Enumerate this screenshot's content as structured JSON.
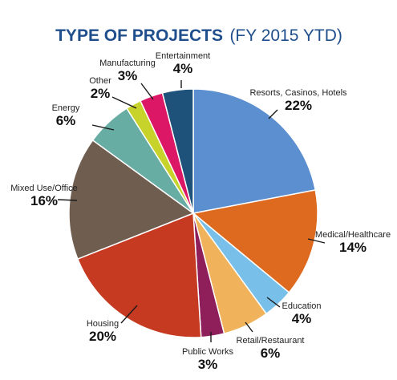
{
  "chart_data": {
    "type": "pie",
    "title": "TYPE OF PROJECTS",
    "subtitle": "(FY 2015 YTD)",
    "slices": [
      {
        "label": "Resorts, Casinos, Hotels",
        "value": 22,
        "value_text": "22%",
        "color": "#5b8fcf"
      },
      {
        "label": "Medical/Healthcare",
        "value": 14,
        "value_text": "14%",
        "color": "#dd6a1f"
      },
      {
        "label": "Education",
        "value": 4,
        "value_text": "4%",
        "color": "#78c0ea"
      },
      {
        "label": "Retail/Restaurant",
        "value": 6,
        "value_text": "6%",
        "color": "#f0b25a"
      },
      {
        "label": "Public Works",
        "value": 3,
        "value_text": "3%",
        "color": "#8e1f5a"
      },
      {
        "label": "Housing",
        "value": 20,
        "value_text": "20%",
        "color": "#c63a22"
      },
      {
        "label": "Mixed Use/Office",
        "value": 16,
        "value_text": "16%",
        "color": "#6f5d4f"
      },
      {
        "label": "Energy",
        "value": 6,
        "value_text": "6%",
        "color": "#67ada3"
      },
      {
        "label": "Other",
        "value": 2,
        "value_text": "2%",
        "color": "#c7d32a"
      },
      {
        "label": "Manufacturing",
        "value": 3,
        "value_text": "3%",
        "color": "#dc1765"
      },
      {
        "label": "Entertainment",
        "value": 4,
        "value_text": "4%",
        "color": "#1f527a"
      }
    ]
  }
}
